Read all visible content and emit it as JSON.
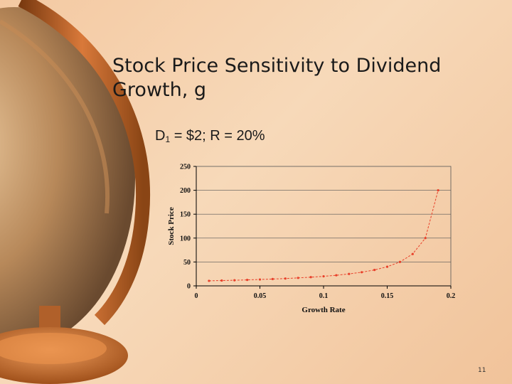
{
  "slide": {
    "title": "Stock Price Sensitivity to Dividend Growth, g",
    "subtitle_d": "D",
    "subtitle_sub": "1",
    "subtitle_rest": " = $2; R = 20%",
    "page_number": "11"
  },
  "colors": {
    "series": "#e8402a",
    "axis": "#000000",
    "grid": "#555555"
  },
  "chart_data": {
    "type": "line",
    "title": "",
    "xlabel": "Growth Rate",
    "ylabel": "Stock Price",
    "xlim": [
      0,
      0.2
    ],
    "ylim": [
      0,
      250
    ],
    "xticks": [
      0,
      0.05,
      0.1,
      0.15,
      0.2
    ],
    "xtick_labels": [
      "0",
      "0.05",
      "0.1",
      "0.15",
      "0.2"
    ],
    "yticks": [
      0,
      50,
      100,
      150,
      200,
      250
    ],
    "ytick_labels": [
      "0",
      "50",
      "100",
      "150",
      "200",
      "250"
    ],
    "grid": "horizontal",
    "series": [
      {
        "x": [
          0.01,
          0.02,
          0.03,
          0.04,
          0.05,
          0.06,
          0.07,
          0.08,
          0.09,
          0.1,
          0.11,
          0.12,
          0.13,
          0.14,
          0.15,
          0.16,
          0.17,
          0.18,
          0.19
        ],
        "values": [
          10.53,
          11.11,
          11.76,
          12.5,
          13.33,
          14.29,
          15.38,
          16.67,
          18.18,
          20.0,
          22.22,
          25.0,
          28.57,
          33.33,
          40.0,
          50.0,
          66.67,
          100.0,
          200.0
        ]
      }
    ]
  }
}
